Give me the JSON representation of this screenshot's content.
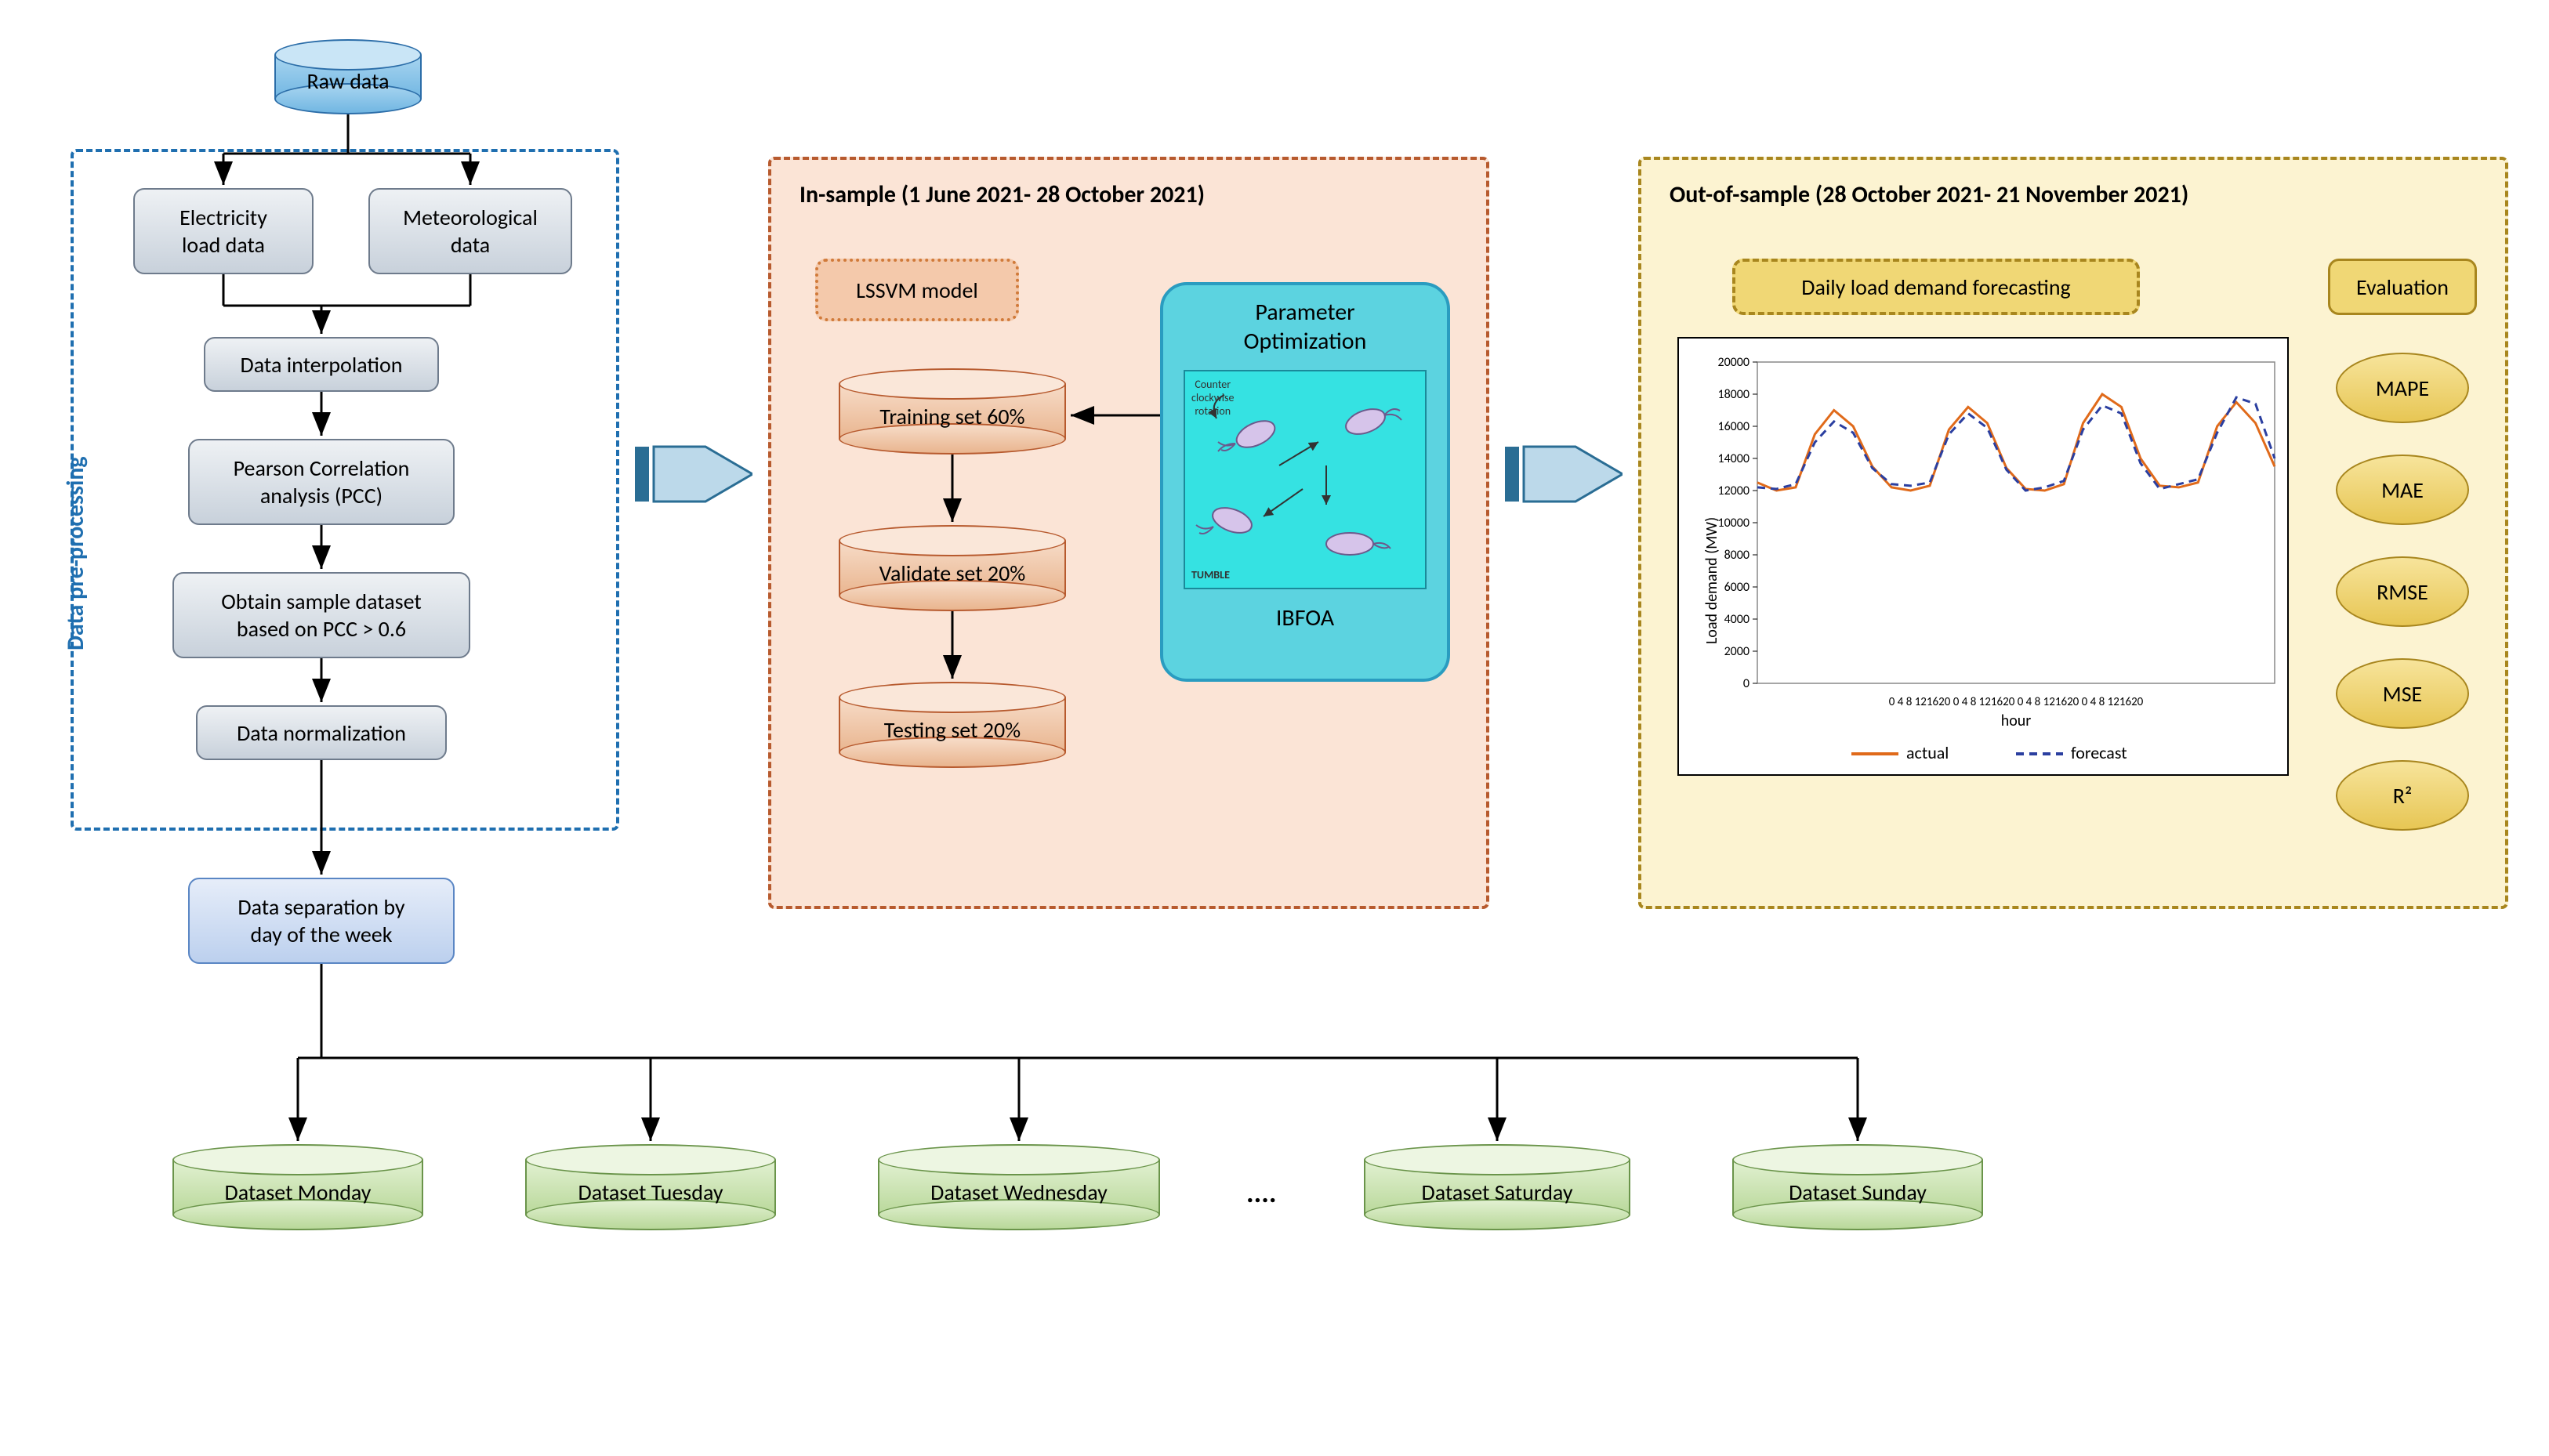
{
  "colors": {
    "raw_fill": "#a8d5f0",
    "raw_border": "#2b6da8",
    "prep_box_fill1": "#dfe5eb",
    "prep_box_fill2": "#c8d1db",
    "prep_box_border": "#6e7b8c",
    "prep_panel_border": "#1f6fb0",
    "sep_fill": "#cfe0f6",
    "sep_border": "#5a86c4",
    "green_fill": "#cfe8b9",
    "green_border": "#6a944a",
    "insample_bg": "#fbe4d6",
    "insample_border": "#b75a2e",
    "cyl_in_fill": "#f4c9ab",
    "cyl_in_border": "#b75a2e",
    "lssvm_fill": "#f4c9ab",
    "lssvm_border": "#d07a3a",
    "opt_bg": "#5cd3e0",
    "opt_border": "#2a9cc0",
    "outsample_bg": "#fcf3d1",
    "outsample_border": "#a8861e",
    "daily_fill": "#f0d775",
    "daily_border": "#a8861e",
    "eval_fill": "#f0d775",
    "eval_border": "#a8861e",
    "bigarrow_fill": "#bcd9ea",
    "bigarrow_border": "#2a6d94",
    "arrow": "#000000",
    "chart_actual": "#e06a1a",
    "chart_forecast": "#2b3fa0"
  },
  "raw_label": "Raw data",
  "prep_panel_label": "Data pre-processing",
  "prep_boxes": {
    "elec": "Electricity\nload data",
    "meteo": "Meteorological\ndata",
    "interp": "Data interpolation",
    "pcc": "Pearson Correlation\nanalysis (PCC)",
    "obtain": "Obtain sample dataset\nbased on PCC > 0.6",
    "norm": "Data normalization"
  },
  "sep_label": "Data separation by\nday of the week",
  "green_datasets": [
    "Dataset Monday",
    "Dataset Tuesday",
    "Dataset Wednesday",
    "Dataset Saturday",
    "Dataset Sunday"
  ],
  "ellipsis": "....",
  "insample_title": "In-sample (1 June 2021- 28 October 2021)",
  "lssvm_label": "LSSVM model",
  "training_labels": [
    "Training set 60%",
    "Validate set 20%",
    "Testing set 20%"
  ],
  "opt_title": "Parameter\nOptimization",
  "opt_caption": "IBFOA",
  "opt_inset": {
    "tl": "Counter\nclockwise\nrotation",
    "bl": "TUMBLE"
  },
  "outsample_title": "Out-of-sample (28 October 2021- 21 November 2021)",
  "daily_label": "Daily load demand forecasting",
  "eval_title": "Evaluation",
  "metrics": [
    "MAPE",
    "MAE",
    "RMSE",
    "MSE",
    "R²"
  ],
  "chart": {
    "ylabel": "Load demand (MW)",
    "xlabel": "hour",
    "ylim": [
      0,
      20000
    ],
    "ytick_step": 2000,
    "yticks": [
      "0",
      "2000",
      "4000",
      "6000",
      "8000",
      "10000",
      "12000",
      "14000",
      "16000",
      "18000",
      "20000"
    ],
    "x_axis_labels": "0  4  8 121620  0  4  8 121620  0  4  8 121620  0  4  8 121620",
    "legend": {
      "actual": "actual",
      "forecast": "forecast"
    },
    "actual_color": "#e06a1a",
    "forecast_color": "#2b3fa0",
    "actual": [
      12500,
      12000,
      12200,
      15500,
      17000,
      16000,
      13500,
      12200,
      12000,
      12300,
      15800,
      17200,
      16200,
      13400,
      12100,
      12000,
      12400,
      16200,
      18000,
      17200,
      14000,
      12300,
      12200,
      12500,
      16000,
      17500,
      16200,
      13500
    ],
    "forecast": [
      12200,
      12100,
      12400,
      15000,
      16300,
      15600,
      13400,
      12400,
      12300,
      12500,
      15500,
      16800,
      15900,
      13300,
      12000,
      12200,
      12600,
      15800,
      17300,
      16800,
      13700,
      12100,
      12400,
      12700,
      15600,
      17800,
      17400,
      14000
    ]
  }
}
